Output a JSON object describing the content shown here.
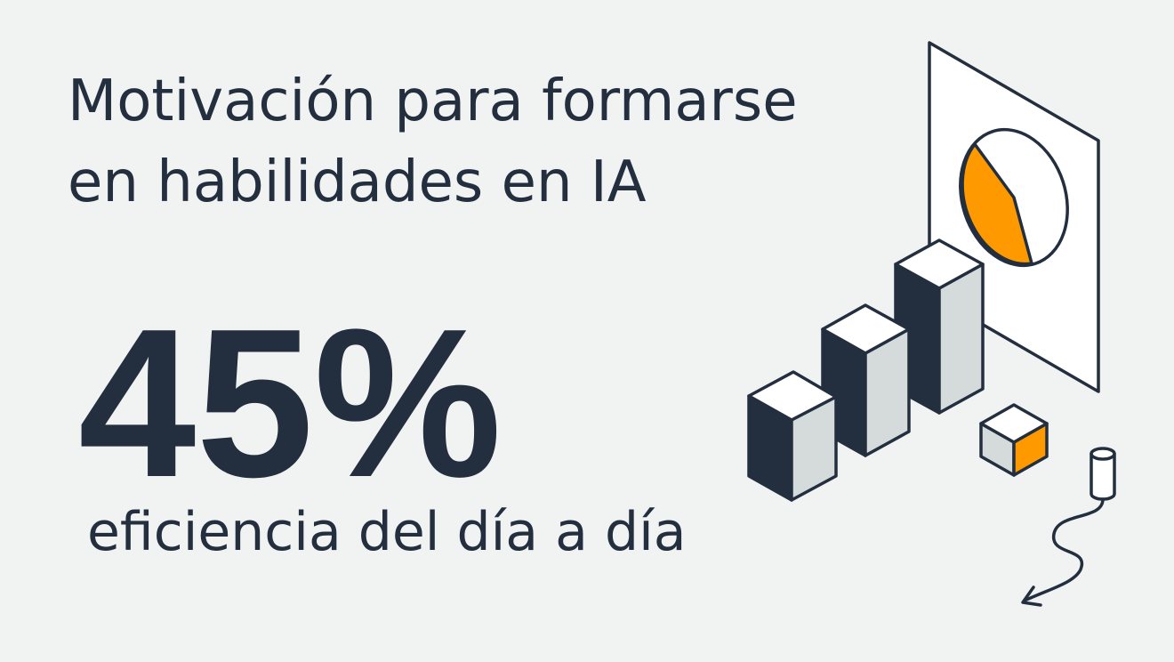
{
  "title": [
    "Motivación para formarse",
    "en habilidades en IA"
  ],
  "stat": {
    "figure": "45%",
    "caption": "eficiencia del día a día"
  }
}
